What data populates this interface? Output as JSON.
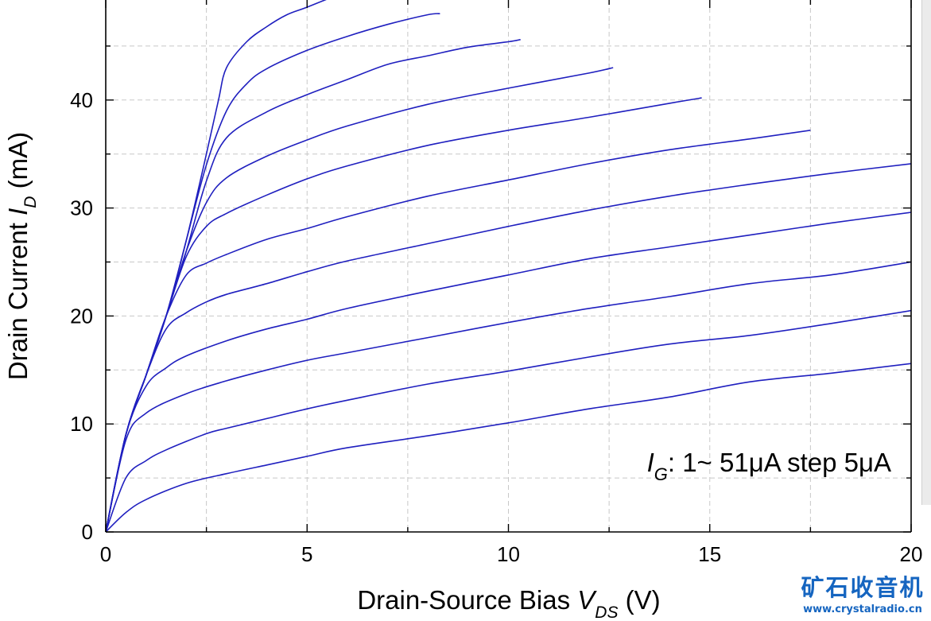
{
  "chart_data": {
    "type": "line",
    "xlabel": "Drain-Source Bias",
    "xvar": "V",
    "xvar_sub": "DS",
    "xunit": " (V)",
    "ylabel": "Drain Current",
    "yvar": "I",
    "yvar_sub": "D",
    "yunit": " (mA)",
    "xlim": [
      0,
      20
    ],
    "ylim": [
      0,
      50
    ],
    "x_ticks": [
      "0",
      "5",
      "10",
      "15",
      "20"
    ],
    "y_ticks": [
      "0",
      "10",
      "20",
      "30",
      "40"
    ],
    "grid": true,
    "annotation": {
      "var": "I",
      "sub": "G",
      "text": ": 1~ 51μA step 5μA"
    },
    "series": [
      {
        "x": [
          0,
          0.5,
          1,
          2,
          3,
          4,
          5,
          6,
          8,
          10,
          12,
          14,
          16,
          18,
          20
        ],
        "values": [
          0,
          1.8,
          3,
          4.5,
          5.4,
          6.2,
          7,
          7.8,
          8.9,
          10.1,
          11.4,
          12.5,
          13.9,
          14.7,
          15.6
        ]
      },
      {
        "x": [
          0,
          0.5,
          1,
          1.5,
          2.5,
          3,
          4,
          5,
          6,
          8,
          10,
          12,
          14,
          16,
          18,
          20
        ],
        "values": [
          0,
          5,
          6.6,
          7.6,
          9.1,
          9.6,
          10.5,
          11.4,
          12.2,
          13.7,
          14.9,
          16.2,
          17.4,
          18.2,
          19.3,
          20.5
        ]
      },
      {
        "x": [
          0,
          0.5,
          1,
          2,
          3,
          4,
          5,
          6,
          8,
          10,
          12,
          14,
          16,
          18,
          20
        ],
        "values": [
          0,
          8.5,
          11,
          12.8,
          14,
          15,
          15.9,
          16.6,
          18,
          19.4,
          20.7,
          21.8,
          23,
          23.8,
          25
        ]
      },
      {
        "x": [
          0,
          0.5,
          1,
          1.5,
          2,
          3,
          4,
          5,
          6,
          8,
          10,
          12,
          14,
          16,
          18,
          20
        ],
        "values": [
          0,
          9,
          13.5,
          15.2,
          16.3,
          17.7,
          18.8,
          19.7,
          20.7,
          22.3,
          23.8,
          25.3,
          26.4,
          27.5,
          28.6,
          29.6
        ]
      },
      {
        "x": [
          0,
          0.5,
          1,
          1.5,
          2,
          2.5,
          3,
          4,
          5,
          6,
          8,
          10,
          12,
          14,
          16,
          18,
          20
        ],
        "values": [
          0,
          9,
          14.5,
          18.8,
          20.3,
          21.3,
          22,
          23,
          24.1,
          25.1,
          26.7,
          28.3,
          29.8,
          31.1,
          32.2,
          33.2,
          34.1
        ]
      },
      {
        "x": [
          0,
          0.5,
          1,
          1.5,
          2,
          2.5,
          3,
          4,
          5,
          6,
          8,
          10,
          12,
          14,
          16,
          17.5
        ],
        "values": [
          0,
          9,
          14.5,
          20,
          23.8,
          24.9,
          25.7,
          27.1,
          28.1,
          29.2,
          31.1,
          32.6,
          34.1,
          35.4,
          36.4,
          37.2
        ]
      },
      {
        "x": [
          0,
          0.5,
          1,
          1.5,
          2,
          2.5,
          3,
          4,
          5,
          6,
          8,
          10,
          12,
          14,
          14.8
        ],
        "values": [
          0,
          9,
          14.5,
          20,
          25.5,
          28.3,
          29.5,
          31.2,
          32.7,
          33.9,
          35.8,
          37.2,
          38.4,
          39.7,
          40.2
        ]
      },
      {
        "x": [
          0,
          0.5,
          1,
          1.5,
          2,
          2.5,
          3,
          4,
          5,
          6,
          8,
          10,
          12,
          12.6
        ],
        "values": [
          0,
          9,
          14.5,
          20,
          26,
          30.5,
          32.8,
          34.8,
          36.3,
          37.6,
          39.6,
          41.1,
          42.5,
          43
        ]
      },
      {
        "x": [
          0,
          0.5,
          1,
          1.5,
          2,
          2.5,
          3,
          4,
          5,
          6,
          7,
          8,
          9,
          10,
          10.3
        ],
        "values": [
          0,
          9,
          14.5,
          20,
          26,
          32.5,
          36.5,
          38.9,
          40.5,
          41.9,
          43.3,
          44.1,
          44.9,
          45.4,
          45.6
        ]
      },
      {
        "x": [
          0,
          0.5,
          1,
          1.5,
          2,
          2.5,
          3,
          3.5,
          4,
          5,
          6,
          7,
          8,
          8.3
        ],
        "values": [
          0,
          9,
          14.5,
          20,
          27,
          34,
          39,
          41.5,
          42.9,
          44.6,
          45.9,
          47,
          47.9,
          48
        ]
      },
      {
        "x": [
          0,
          0.5,
          1,
          1.5,
          2,
          2.5,
          2.8,
          3,
          3.5,
          4,
          4.5,
          5,
          5.8
        ],
        "values": [
          0,
          9,
          14.5,
          20,
          27,
          35,
          40,
          43,
          45.4,
          46.8,
          47.9,
          48.6,
          49.8
        ]
      }
    ]
  },
  "watermark": {
    "chinese": "矿石收音机",
    "url": "www.crystalradio.cn"
  },
  "colors": {
    "curve": "#1f1fbf",
    "grid": "#c8c8c8",
    "watermark": "#1565c0"
  }
}
